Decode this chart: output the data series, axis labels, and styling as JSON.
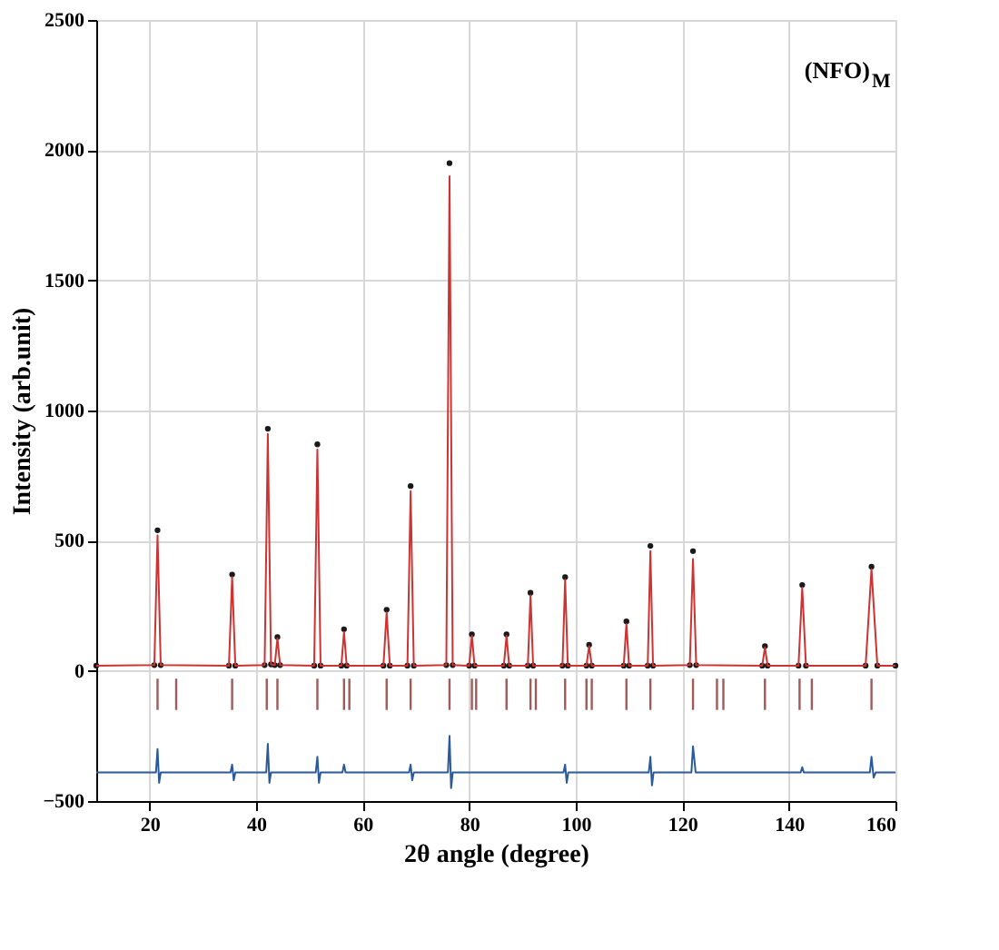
{
  "chart_data": {
    "type": "line",
    "xlabel": "2θ angle (degree)",
    "ylabel": "Intensity (arb.unit)",
    "annotations": [
      "(NFO)$_{M}$"
    ],
    "xlim": [
      10,
      160
    ],
    "xticks": [
      20,
      40,
      60,
      80,
      100,
      120,
      140,
      160
    ],
    "ylim": [
      -500,
      2500
    ],
    "yticks": [
      -500,
      0,
      500,
      1000,
      1500,
      2000,
      2500
    ],
    "grid": true,
    "legend": false,
    "series": [
      {
        "type": "scatter",
        "marker": "circle",
        "color": "#1a1a1a",
        "x": [
          10,
          20.9,
          21.5,
          22.1,
          34.9,
          35.5,
          36.1,
          41.6,
          42.2,
          42.8,
          43.5,
          44,
          44.5,
          50.9,
          51.5,
          52.1,
          56,
          56.5,
          57,
          63.9,
          64.5,
          65.1,
          68.4,
          69,
          69.6,
          75.7,
          76.3,
          76.9,
          80,
          80.5,
          81,
          86.5,
          87,
          87.5,
          91,
          91.5,
          92,
          97.5,
          98,
          98.5,
          102,
          102.5,
          103,
          109,
          109.5,
          110,
          113.5,
          114,
          114.5,
          121.4,
          122,
          122.6,
          135,
          135.5,
          136,
          141.8,
          142.5,
          143.2,
          154.4,
          155.5,
          156.6,
          160
        ],
        "values": [
          20,
          22,
          540,
          22,
          20,
          370,
          20,
          22,
          930,
          25,
          22,
          130,
          22,
          20,
          870,
          20,
          20,
          160,
          20,
          20,
          235,
          20,
          20,
          710,
          20,
          22,
          1950,
          22,
          20,
          140,
          20,
          20,
          140,
          20,
          20,
          300,
          20,
          20,
          360,
          20,
          20,
          100,
          20,
          20,
          190,
          20,
          20,
          480,
          20,
          22,
          460,
          22,
          20,
          95,
          20,
          20,
          330,
          20,
          20,
          400,
          20,
          20
        ]
      },
      {
        "line_style": "solid",
        "color": "#cc3333",
        "x": [
          10,
          20.9,
          21.5,
          22.1,
          34.9,
          35.5,
          36.1,
          41.6,
          42.2,
          42.8,
          43.5,
          44,
          44.5,
          50.9,
          51.5,
          52.1,
          56,
          56.5,
          57,
          63.9,
          64.5,
          65.1,
          68.4,
          69,
          69.6,
          75.7,
          76.3,
          76.9,
          80,
          80.5,
          81,
          86.5,
          87,
          87.5,
          91,
          91.5,
          92,
          97.5,
          98,
          98.5,
          102,
          102.5,
          103,
          109,
          109.5,
          110,
          113.5,
          114,
          114.5,
          121.4,
          122,
          122.6,
          135,
          135.5,
          136,
          141.8,
          142.5,
          143.2,
          154.4,
          155.5,
          156.6,
          160
        ],
        "values": [
          20,
          22,
          520,
          22,
          20,
          360,
          20,
          22,
          910,
          25,
          22,
          125,
          22,
          20,
          850,
          20,
          20,
          150,
          20,
          20,
          225,
          20,
          20,
          690,
          20,
          22,
          1900,
          22,
          20,
          135,
          20,
          20,
          135,
          20,
          20,
          290,
          20,
          20,
          350,
          20,
          20,
          95,
          20,
          20,
          180,
          20,
          20,
          460,
          20,
          22,
          430,
          22,
          20,
          90,
          20,
          20,
          320,
          20,
          20,
          390,
          20,
          20
        ]
      },
      {
        "type": "bar",
        "color": "#a05a5a",
        "x": [
          21.5,
          25,
          35.5,
          42,
          44,
          51.5,
          56.5,
          57.5,
          64.5,
          69,
          76.3,
          80.5,
          81.3,
          87,
          91.5,
          92.5,
          98,
          102,
          103,
          109.5,
          114,
          122,
          126.5,
          127.7,
          135.5,
          142,
          144.3,
          155.5
        ],
        "base": [
          -150,
          -150,
          -150,
          -150,
          -150,
          -150,
          -150,
          -150,
          -150,
          -150,
          -150,
          -150,
          -150,
          -150,
          -150,
          -150,
          -150,
          -150,
          -150,
          -150,
          -150,
          -150,
          -150,
          -150,
          -150,
          -150,
          -150,
          -150
        ],
        "values": [
          120,
          120,
          120,
          120,
          120,
          120,
          120,
          120,
          120,
          120,
          120,
          120,
          120,
          120,
          120,
          120,
          120,
          120,
          120,
          120,
          120,
          120,
          120,
          120,
          120,
          120,
          120,
          120
        ]
      },
      {
        "line_style": "solid",
        "color": "#2a5a9a",
        "x": [
          10,
          21.2,
          21.5,
          21.8,
          22.1,
          35.2,
          35.5,
          35.8,
          36.1,
          41.9,
          42.2,
          42.5,
          42.8,
          51.2,
          51.5,
          51.8,
          52.1,
          56.2,
          56.5,
          56.8,
          68.7,
          69,
          69.3,
          69.6,
          76,
          76.3,
          76.6,
          76.9,
          97.7,
          98,
          98.3,
          98.6,
          113.7,
          114,
          114.3,
          114.6,
          121.7,
          122,
          122.5,
          142.2,
          142.5,
          142.8,
          155.2,
          155.5,
          155.9,
          156.3,
          160
        ],
        "values": [
          -390,
          -390,
          -300,
          -430,
          -390,
          -390,
          -360,
          -420,
          -390,
          -390,
          -280,
          -430,
          -390,
          -390,
          -330,
          -430,
          -390,
          -390,
          -360,
          -390,
          -390,
          -360,
          -420,
          -390,
          -390,
          -250,
          -450,
          -390,
          -390,
          -360,
          -430,
          -390,
          -390,
          -330,
          -440,
          -390,
          -390,
          -290,
          -390,
          -390,
          -370,
          -390,
          -390,
          -330,
          -410,
          -390,
          -390
        ]
      }
    ]
  }
}
